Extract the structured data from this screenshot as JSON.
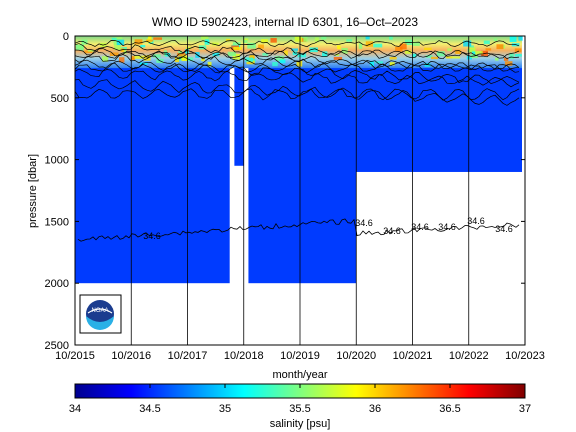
{
  "chart_data": {
    "type": "heatmap",
    "title": "WMO ID 5902423, internal ID 6301, 16–Oct–2023",
    "xlabel": "month/year",
    "ylabel": "pressure [dbar]",
    "x_ticks": [
      "10/2015",
      "10/2016",
      "10/2017",
      "10/2018",
      "10/2019",
      "10/2020",
      "10/2021",
      "10/2022",
      "10/2023"
    ],
    "y_ticks": [
      0,
      500,
      1000,
      1500,
      2000,
      2500
    ],
    "y_range": [
      0,
      2500
    ],
    "y_reversed": true,
    "colorbar": {
      "label": "salinity [psu]",
      "range": [
        34,
        37
      ],
      "ticks": [
        "34",
        "34.5",
        "35",
        "35.5",
        "36",
        "36.5",
        "37"
      ],
      "colormap": "jet"
    },
    "profile_max_pressure": [
      {
        "from": "10/2015",
        "to": "07/2018",
        "max_pressure": 2000
      },
      {
        "from": "08/2018",
        "to": "10/2018",
        "max_pressure": 1050
      },
      {
        "from": "11/2018",
        "to": "10/2020",
        "max_pressure": 2000
      },
      {
        "from": "10/2020",
        "to": "10/2023",
        "max_pressure": 1100
      }
    ],
    "deep_salinity": 34.55,
    "contour_labels": [
      "34.6",
      "34.6",
      "34.6",
      "34.6",
      "34.6",
      "34.6",
      "34.6"
    ],
    "logo": "NOAA",
    "grid": "vertical lines at x ticks"
  }
}
